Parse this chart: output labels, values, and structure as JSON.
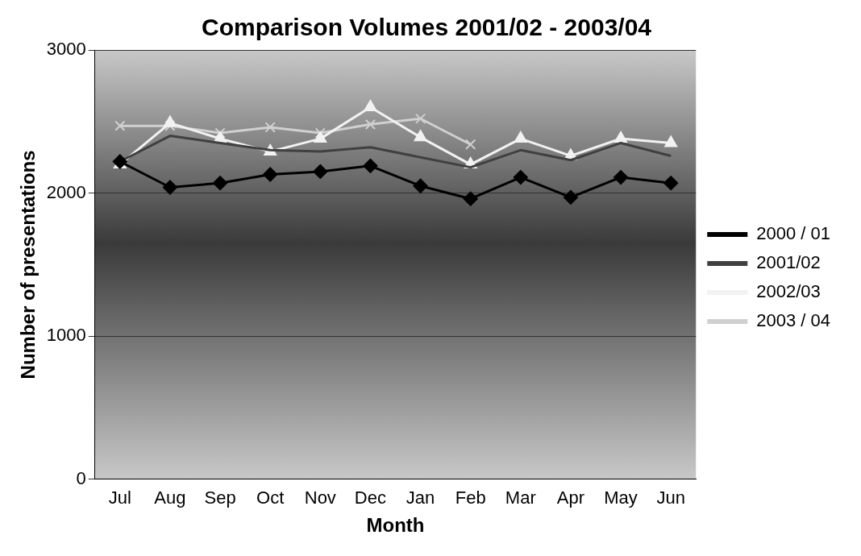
{
  "chart_data": {
    "type": "line",
    "title": "Comparison Volumes 2001/02 - 2003/04",
    "xlabel": "Month",
    "ylabel": "Number of presentations",
    "categories": [
      "Jul",
      "Aug",
      "Sep",
      "Oct",
      "Nov",
      "Dec",
      "Jan",
      "Feb",
      "Mar",
      "Apr",
      "May",
      "Jun"
    ],
    "series": [
      {
        "name": "2000 / 01",
        "color": "#000000",
        "marker": "diamond",
        "values": [
          2220,
          2040,
          2070,
          2130,
          2150,
          2190,
          2050,
          1960,
          2110,
          1970,
          2110,
          2070
        ]
      },
      {
        "name": "2001/02",
        "color": "#404040",
        "marker": "none",
        "values": [
          2220,
          2400,
          2350,
          2300,
          2290,
          2320,
          2250,
          2180,
          2300,
          2230,
          2350,
          2260
        ]
      },
      {
        "name": "2002/03",
        "color": "#f2f2f2",
        "marker": "triangle",
        "values": [
          2200,
          2490,
          2380,
          2290,
          2380,
          2600,
          2390,
          2200,
          2380,
          2260,
          2380,
          2350
        ]
      },
      {
        "name": "2003 / 04",
        "color": "#d0d0d0",
        "marker": "cross",
        "values": [
          2470,
          2470,
          2420,
          2460,
          2420,
          2480,
          2520,
          2340,
          null,
          null,
          null,
          null
        ]
      }
    ],
    "ylim": [
      0,
      3000
    ],
    "yticks": [
      0,
      1000,
      2000,
      3000
    ],
    "grid": "y",
    "legend": "right"
  }
}
